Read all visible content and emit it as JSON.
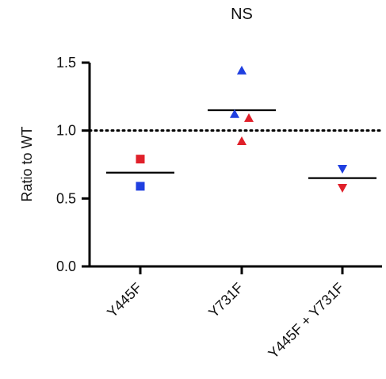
{
  "chart_data": {
    "type": "scatter",
    "annotation": "NS",
    "ylabel": "Ratio to WT",
    "ylim": [
      0.0,
      1.5
    ],
    "yticks": [
      "0.0",
      "0.5",
      "1.0",
      "1.5"
    ],
    "yticks_values": [
      0.0,
      0.5,
      1.0,
      1.5
    ],
    "categories": [
      "Y445F",
      "Y731F",
      "Y445F + Y731F"
    ],
    "reference_line": 1.0,
    "grid": false,
    "colors": {
      "blue": "#1f3fe0",
      "red": "#e0202a",
      "axis": "#000000"
    },
    "groups": [
      {
        "category": "Y445F",
        "marker": "square",
        "mean": 0.69,
        "points": [
          {
            "value": 0.79,
            "color": "red",
            "offset": 0
          },
          {
            "value": 0.59,
            "color": "blue",
            "offset": 0
          }
        ]
      },
      {
        "category": "Y731F",
        "marker": "triangle-up",
        "mean": 1.15,
        "points": [
          {
            "value": 1.44,
            "color": "blue",
            "offset": 0
          },
          {
            "value": 1.12,
            "color": "blue",
            "offset": -1
          },
          {
            "value": 1.09,
            "color": "red",
            "offset": 1
          },
          {
            "value": 0.92,
            "color": "red",
            "offset": 0
          }
        ]
      },
      {
        "category": "Y445F + Y731F",
        "marker": "triangle-down",
        "mean": 0.65,
        "points": [
          {
            "value": 0.72,
            "color": "blue",
            "offset": 0
          },
          {
            "value": 0.58,
            "color": "red",
            "offset": 0
          }
        ]
      }
    ]
  }
}
